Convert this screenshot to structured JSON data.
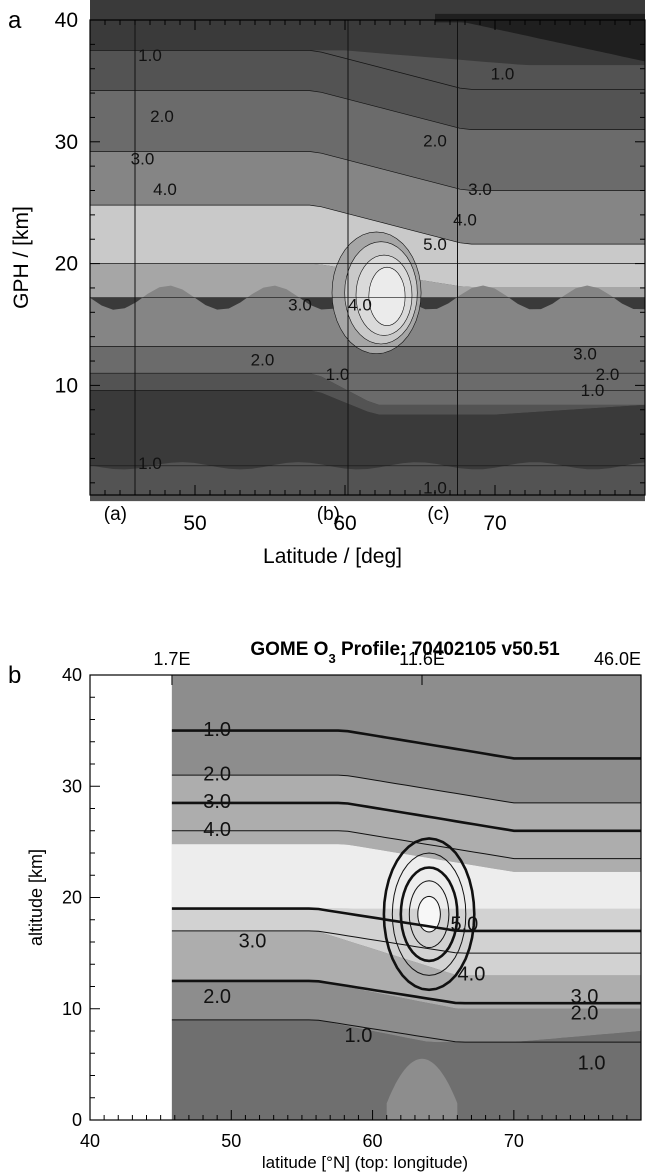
{
  "chart_data": [
    {
      "panel_letter": "a",
      "type": "contour",
      "xlabel": "Latitude / [deg]",
      "ylabel": "GPH / [km]",
      "xlim": [
        43,
        80
      ],
      "ylim": [
        1,
        40
      ],
      "x_ticks": [
        50,
        60,
        70
      ],
      "y_ticks": [
        10,
        20,
        30,
        40
      ],
      "markers": [
        {
          "label": "(a)",
          "x": 46
        },
        {
          "label": "(b)",
          "x": 60.2
        },
        {
          "label": "(c)",
          "x": 67.5
        }
      ],
      "contour_labels": [
        {
          "text": "1.0",
          "x": 47.0,
          "y": 37.0
        },
        {
          "text": "1.0",
          "x": 70.5,
          "y": 35.5
        },
        {
          "text": "2.0",
          "x": 47.8,
          "y": 32.0
        },
        {
          "text": "2.0",
          "x": 66.0,
          "y": 30.0
        },
        {
          "text": "3.0",
          "x": 46.5,
          "y": 28.5
        },
        {
          "text": "3.0",
          "x": 69.0,
          "y": 26.0
        },
        {
          "text": "4.0",
          "x": 48.0,
          "y": 26.0
        },
        {
          "text": "4.0",
          "x": 68.0,
          "y": 23.5
        },
        {
          "text": "5.0",
          "x": 66.0,
          "y": 21.5
        },
        {
          "text": "3.0",
          "x": 57.0,
          "y": 16.5
        },
        {
          "text": "4.0",
          "x": 61.0,
          "y": 16.5
        },
        {
          "text": "2.0",
          "x": 54.5,
          "y": 12.0
        },
        {
          "text": "1.0",
          "x": 59.5,
          "y": 10.8
        },
        {
          "text": "3.0",
          "x": 76.0,
          "y": 12.5
        },
        {
          "text": "2.0",
          "x": 77.5,
          "y": 10.8
        },
        {
          "text": "1.0",
          "x": 76.5,
          "y": 9.5
        },
        {
          "text": "1.0",
          "x": 47.0,
          "y": 3.5
        },
        {
          "text": "1.0",
          "x": 66.0,
          "y": 1.5
        }
      ],
      "colors": {
        "level0": "#1f1f1f",
        "level1": "#3a3a3a",
        "level2": "#535353",
        "level3": "#6b6b6b",
        "level4": "#858585",
        "level5": "#a6a6a6",
        "level6": "#c9c9c9",
        "level7": "#ebebeb"
      }
    },
    {
      "panel_letter": "b",
      "type": "contour",
      "title_pre": "GOME O",
      "title_sub": "3",
      "title_post": " Profile: 70402105 v50.51",
      "xlabel": "latitude [°N]  (top: longitude)",
      "ylabel": "altitude [km]",
      "xlim": [
        40,
        79
      ],
      "ylim": [
        0,
        40
      ],
      "x_ticks": [
        40,
        50,
        60,
        70
      ],
      "y_ticks": [
        0,
        10,
        20,
        30,
        40
      ],
      "top_axis": [
        {
          "label": "1.7E",
          "x": 45.8
        },
        {
          "label": "11.6E",
          "x": 63.5
        },
        {
          "label": "46.0E",
          "x": 79
        }
      ],
      "data_start_lat": 45.8,
      "contour_labels": [
        {
          "text": "1.0",
          "x": 49.0,
          "y": 35.0
        },
        {
          "text": "2.0",
          "x": 49.0,
          "y": 31.0
        },
        {
          "text": "3.0",
          "x": 49.0,
          "y": 28.5
        },
        {
          "text": "4.0",
          "x": 49.0,
          "y": 26.0
        },
        {
          "text": "3.0",
          "x": 51.5,
          "y": 16.0
        },
        {
          "text": "2.0",
          "x": 49.0,
          "y": 11.0
        },
        {
          "text": "1.0",
          "x": 59.0,
          "y": 7.5
        },
        {
          "text": "5.0",
          "x": 66.5,
          "y": 17.5
        },
        {
          "text": "4.0",
          "x": 67.0,
          "y": 13.0
        },
        {
          "text": "3.0",
          "x": 75.0,
          "y": 11.0
        },
        {
          "text": "2.0",
          "x": 75.0,
          "y": 9.5
        },
        {
          "text": "1.0",
          "x": 75.5,
          "y": 5.0
        }
      ],
      "colors": {
        "levelA": "#6f6f6f",
        "levelB": "#8d8d8d",
        "levelC": "#adadad",
        "levelD": "#d2d2d2",
        "levelE": "#ededed"
      }
    }
  ]
}
